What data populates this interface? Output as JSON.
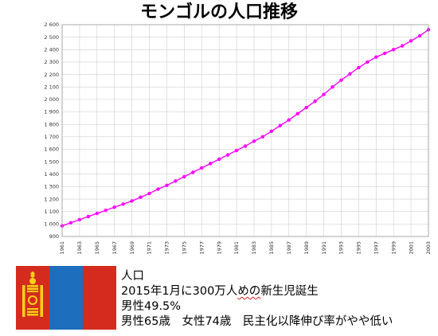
{
  "title": "モンゴルの人口推移",
  "chart_data": {
    "type": "line",
    "title": "モンゴルの人口推移",
    "xlabel": "",
    "ylabel": "",
    "ylim": [
      900,
      2600
    ],
    "yticks": [
      900,
      1000,
      1100,
      1200,
      1300,
      1400,
      1500,
      1600,
      1700,
      1800,
      1900,
      2000,
      2100,
      2200,
      2300,
      2400,
      2500,
      2600
    ],
    "ytick_labels": [
      "900",
      "1 000",
      "1 100",
      "1 200",
      "1 300",
      "1 400",
      "1 500",
      "1 600",
      "1 700",
      "1 800",
      "1 900",
      "2 000",
      "2 100",
      "2 200",
      "2 300",
      "2 400",
      "2 500",
      "2 600"
    ],
    "xlim": [
      1961,
      2003
    ],
    "xticks": [
      "1961",
      "1963",
      "1965",
      "1967",
      "1969",
      "1971",
      "1973",
      "1975",
      "1977",
      "1979",
      "1981",
      "1983",
      "1985",
      "1987",
      "1989",
      "1991",
      "1993",
      "1995",
      "1997",
      "1999",
      "2001",
      "2003"
    ],
    "grid": true,
    "legend": "none",
    "series": [
      {
        "color": "#ff00ff",
        "x": [
          1961,
          1962,
          1963,
          1964,
          1965,
          1966,
          1967,
          1968,
          1969,
          1970,
          1971,
          1972,
          1973,
          1974,
          1975,
          1976,
          1977,
          1978,
          1979,
          1980,
          1981,
          1982,
          1983,
          1984,
          1985,
          1986,
          1987,
          1988,
          1989,
          1990,
          1991,
          1992,
          1993,
          1994,
          1995,
          1996,
          1997,
          1998,
          1999,
          2000,
          2001,
          2002,
          2003
        ],
        "values": [
          985,
          1010,
          1035,
          1060,
          1085,
          1110,
          1135,
          1160,
          1185,
          1215,
          1245,
          1280,
          1310,
          1345,
          1380,
          1415,
          1450,
          1485,
          1520,
          1555,
          1590,
          1625,
          1665,
          1700,
          1745,
          1790,
          1835,
          1885,
          1935,
          1985,
          2040,
          2100,
          2155,
          2205,
          2255,
          2300,
          2340,
          2370,
          2400,
          2430,
          2470,
          2510,
          2560
        ]
      }
    ]
  },
  "info": {
    "line1": "人口",
    "line2_pre": "2015年1月に300万人",
    "line2_wavy": "めの",
    "line2_post": "新生児誕生",
    "line3": "男性49.5%",
    "line4": "男性65歳　女性74歳　民主化以降伸び率がやや低い"
  },
  "flag": {
    "red": "#d52b1e",
    "blue": "#1d6ebd",
    "gold": "#f7d116"
  }
}
